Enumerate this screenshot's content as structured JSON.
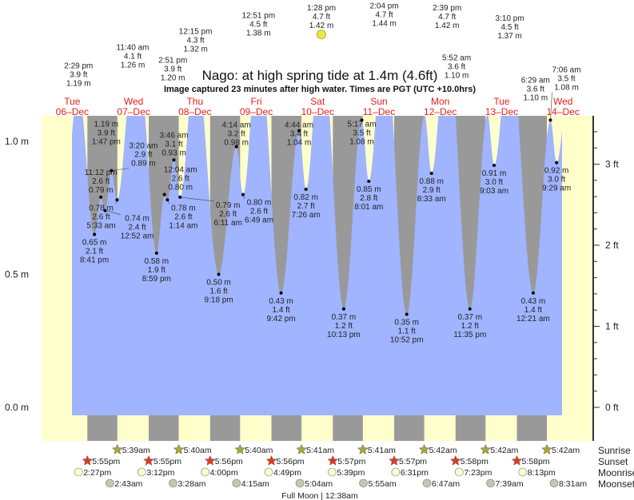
{
  "chart_data": {
    "type": "area",
    "title": "Nago: at high  spring tide at 1.4m (4.6ft)",
    "subtitle": "Image captured 23 minutes after high water. Times are PGT (UTC +10.0hrs)",
    "y_left_ticks": [
      "1.0 m",
      "0.5 m",
      "0.0 m"
    ],
    "y_right_ticks": [
      "3 ft",
      "2 ft",
      "1 ft",
      "0 ft"
    ],
    "colors": {
      "water": "#a0b4ff",
      "day": "#ffffcc",
      "night": "#999999",
      "day_label": "#e8201a",
      "sunrise": "#a9a83a",
      "sunset": "#e23a1e",
      "moonrise": "#ffffcc",
      "moonset": "#c8c4b4",
      "full_moon": "#f0e840"
    },
    "days": [
      {
        "dow": "Tue",
        "date": "06–Dec"
      },
      {
        "dow": "Wed",
        "date": "07–Dec"
      },
      {
        "dow": "Thu",
        "date": "08–Dec"
      },
      {
        "dow": "Fri",
        "date": "09–Dec"
      },
      {
        "dow": "Sat",
        "date": "10–Dec"
      },
      {
        "dow": "Sun",
        "date": "11–Dec"
      },
      {
        "dow": "Mon",
        "date": "12–Dec"
      },
      {
        "dow": "Tue",
        "date": "13–Dec"
      },
      {
        "dow": "Wed",
        "date": "14–Dec"
      }
    ],
    "extremes": [
      {
        "type": "high",
        "date": "06",
        "time": "2:29 pm",
        "ft": "3.9 ft",
        "m": "1.19 m"
      },
      {
        "type": "low",
        "date": "06",
        "time": "8:41 pm",
        "ft": "2.1 ft",
        "m": "0.65 m"
      },
      {
        "type": "high",
        "date": "06",
        "time": "11:12 pm",
        "ft": "2.6 ft",
        "m": "0.79 m"
      },
      {
        "type": "low",
        "date": "07",
        "time": "12:52 am",
        "ft": "2.4 ft",
        "m": "0.74 m"
      },
      {
        "type": "high",
        "date": "07",
        "time": "3:20 am",
        "ft": "2.9 ft",
        "m": "0.89 m"
      },
      {
        "type": "low",
        "date": "07",
        "time": "5:33 am",
        "ft": "2.6 ft",
        "m": "0.78 m"
      },
      {
        "type": "high",
        "date": "07",
        "time": "11:40 am",
        "ft": "4.1 ft",
        "m": "1.26 m"
      },
      {
        "type": "low",
        "date": "07",
        "time": "1:47 pm",
        "ft": "3.9 ft",
        "m": "1.19 m"
      },
      {
        "type": "high",
        "date": "07",
        "time": "2:51 pm",
        "ft": "3.9 ft",
        "m": "1.20 m"
      },
      {
        "type": "low",
        "date": "07",
        "time": "8:59 pm",
        "ft": "1.9 ft",
        "m": "0.58 m"
      },
      {
        "type": "high",
        "date": "08",
        "time": "12:04 am",
        "ft": "2.6 ft",
        "m": "0.80 m"
      },
      {
        "type": "low",
        "date": "08",
        "time": "1:14 am",
        "ft": "2.6 ft",
        "m": "0.78 m"
      },
      {
        "type": "high",
        "date": "08",
        "time": "3:46 am",
        "ft": "3.1 ft",
        "m": "0.93 m"
      },
      {
        "type": "low",
        "date": "08",
        "time": "6:11 am",
        "ft": "2.6 ft",
        "m": "0.79 m"
      },
      {
        "type": "high",
        "date": "08",
        "time": "12:15 pm",
        "ft": "4.3 ft",
        "m": "1.32 m"
      },
      {
        "type": "low",
        "date": "08",
        "time": "9:18 pm",
        "ft": "1.6 ft",
        "m": "0.50 m"
      },
      {
        "type": "high",
        "date": "09",
        "time": "4:14 am",
        "ft": "3.2 ft",
        "m": "0.98 m"
      },
      {
        "type": "low",
        "date": "09",
        "time": "6:49 am",
        "ft": "2.6 ft",
        "m": "0.80 m"
      },
      {
        "type": "high",
        "date": "09",
        "time": "12:51 pm",
        "ft": "4.5 ft",
        "m": "1.38 m"
      },
      {
        "type": "low",
        "date": "09",
        "time": "9:42 pm",
        "ft": "1.4 ft",
        "m": "0.43 m"
      },
      {
        "type": "high",
        "date": "10",
        "time": "4:44 am",
        "ft": "3.4 ft",
        "m": "1.04 m"
      },
      {
        "type": "low",
        "date": "10",
        "time": "7:26 am",
        "ft": "2.7 ft",
        "m": "0.82 m"
      },
      {
        "type": "high",
        "date": "10",
        "time": "1:28 pm",
        "ft": "4.7 ft",
        "m": "1.42 m"
      },
      {
        "type": "low",
        "date": "10",
        "time": "10:13 pm",
        "ft": "1.2 ft",
        "m": "0.37 m"
      },
      {
        "type": "high",
        "date": "11",
        "time": "5:17 am",
        "ft": "3.5 ft",
        "m": "1.08 m"
      },
      {
        "type": "low",
        "date": "11",
        "time": "8:01 am",
        "ft": "2.8 ft",
        "m": "0.85 m"
      },
      {
        "type": "high",
        "date": "11",
        "time": "2:04 pm",
        "ft": "4.7 ft",
        "m": "1.44 m"
      },
      {
        "type": "low",
        "date": "11",
        "time": "10:52 pm",
        "ft": "1.1 ft",
        "m": "0.35 m"
      },
      {
        "type": "high",
        "date": "12",
        "time": "5:52 am",
        "ft": "3.6 ft",
        "m": "1.10 m"
      },
      {
        "type": "low",
        "date": "12",
        "time": "8:33 am",
        "ft": "2.9 ft",
        "m": "0.88 m"
      },
      {
        "type": "high",
        "date": "12",
        "time": "2:39 pm",
        "ft": "4.7 ft",
        "m": "1.42 m"
      },
      {
        "type": "low",
        "date": "12",
        "time": "11:35 pm",
        "ft": "1.2 ft",
        "m": "0.37 m"
      },
      {
        "type": "high",
        "date": "13",
        "time": "6:29 am",
        "ft": "3.6 ft",
        "m": "1.10 m"
      },
      {
        "type": "low",
        "date": "13",
        "time": "9:03 am",
        "ft": "3.0 ft",
        "m": "0.91 m"
      },
      {
        "type": "high",
        "date": "13",
        "time": "3:10 pm",
        "ft": "4.5 ft",
        "m": "1.37 m"
      },
      {
        "type": "low",
        "date": "14",
        "time": "12:21 am",
        "ft": "1.4 ft",
        "m": "0.43 m"
      },
      {
        "type": "high",
        "date": "14",
        "time": "7:06 am",
        "ft": "3.5 ft",
        "m": "1.08 m"
      },
      {
        "type": "low",
        "date": "14",
        "time": "9:29 am",
        "ft": "3.0 ft",
        "m": "0.92 m"
      }
    ],
    "full_moon_at_high": 22,
    "rows": {
      "sunrise": "Sunrise",
      "sunset": "Sunset",
      "moonrise": "Moonrise",
      "moonset": "Moonset"
    },
    "sunrise": [
      {
        "date": "07",
        "time": "5:39am"
      },
      {
        "date": "08",
        "time": "5:40am"
      },
      {
        "date": "09",
        "time": "5:40am"
      },
      {
        "date": "10",
        "time": "5:41am"
      },
      {
        "date": "11",
        "time": "5:41am"
      },
      {
        "date": "12",
        "time": "5:42am"
      },
      {
        "date": "13",
        "time": "5:42am"
      },
      {
        "date": "14",
        "time": "5:42am"
      }
    ],
    "sunset": [
      {
        "date": "06",
        "time": "5:55pm"
      },
      {
        "date": "07",
        "time": "5:55pm"
      },
      {
        "date": "08",
        "time": "5:56pm"
      },
      {
        "date": "09",
        "time": "5:56pm"
      },
      {
        "date": "10",
        "time": "5:57pm"
      },
      {
        "date": "11",
        "time": "5:57pm"
      },
      {
        "date": "12",
        "time": "5:58pm"
      },
      {
        "date": "13",
        "time": "5:58pm"
      }
    ],
    "moonrise": [
      {
        "date": "06",
        "time": "2:27pm"
      },
      {
        "date": "07",
        "time": "3:12pm"
      },
      {
        "date": "08",
        "time": "4:00pm"
      },
      {
        "date": "09",
        "time": "4:49pm"
      },
      {
        "date": "10",
        "time": "5:39pm"
      },
      {
        "date": "11",
        "time": "6:31pm"
      },
      {
        "date": "12",
        "time": "7:23pm"
      },
      {
        "date": "13",
        "time": "8:13pm"
      }
    ],
    "moonset": [
      {
        "date": "07",
        "time": "2:43am"
      },
      {
        "date": "08",
        "time": "3:28am"
      },
      {
        "date": "09",
        "time": "4:15am"
      },
      {
        "date": "10",
        "time": "5:04am"
      },
      {
        "date": "11",
        "time": "5:55am"
      },
      {
        "date": "12",
        "time": "6:47am"
      },
      {
        "date": "13",
        "time": "7:39am"
      },
      {
        "date": "14",
        "time": "8:31am"
      }
    ],
    "footer": "Full Moon | 12:38am"
  }
}
